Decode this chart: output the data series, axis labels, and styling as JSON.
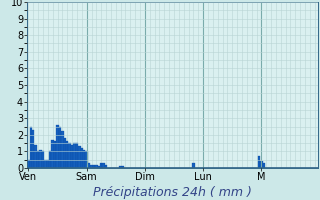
{
  "ylabel_values": [
    0,
    1,
    2,
    3,
    4,
    5,
    6,
    7,
    8,
    9,
    10
  ],
  "ylim": [
    0,
    10
  ],
  "background_color": "#cce8e8",
  "plot_bg_color": "#daf0f0",
  "grid_color_minor": "#b8d4d4",
  "grid_color_major": "#7aabab",
  "bar_color": "#1560bd",
  "bar_edge_color": "#0040a0",
  "x_labels": [
    "Ven",
    "Sam",
    "Dim",
    "Lun",
    "M"
  ],
  "num_bars": 120,
  "bar_data": [
    0.5,
    2.5,
    2.3,
    1.4,
    1.0,
    1.1,
    1.0,
    0.5,
    0.5,
    1.0,
    1.7,
    1.6,
    2.6,
    2.5,
    2.2,
    1.8,
    1.6,
    1.5,
    1.4,
    1.5,
    1.5,
    1.3,
    1.2,
    1.1,
    1.0,
    0.3,
    0.2,
    0.2,
    0.2,
    0.15,
    0.3,
    0.3,
    0.2,
    0.0,
    0.0,
    0.0,
    0.0,
    0.0,
    0.15,
    0.1,
    0.0,
    0.0,
    0.0,
    0.0,
    0.0,
    0.0,
    0.0,
    0.0,
    0.0,
    0.0,
    0.0,
    0.0,
    0.0,
    0.0,
    0.0,
    0.0,
    0.0,
    0.0,
    0.0,
    0.0,
    0.0,
    0.0,
    0.0,
    0.0,
    0.0,
    0.0,
    0.0,
    0.0,
    0.3,
    0.0,
    0.0,
    0.0,
    0.0,
    0.0,
    0.0,
    0.0,
    0.0,
    0.0,
    0.0,
    0.0,
    0.0,
    0.0,
    0.0,
    0.0,
    0.0,
    0.0,
    0.0,
    0.0,
    0.0,
    0.0,
    0.0,
    0.0,
    0.0,
    0.0,
    0.0,
    0.7,
    0.4,
    0.3,
    0.0,
    0.0,
    0.0,
    0.0,
    0.0,
    0.0,
    0.0,
    0.0,
    0.0,
    0.0,
    0.0,
    0.0,
    0.0,
    0.0,
    0.0,
    0.0,
    0.0,
    0.0,
    0.0,
    0.0,
    0.0,
    0.0
  ],
  "xlabel": "Précipitations 24h ( mm )",
  "xlabel_fontsize": 9,
  "tick_fontsize": 7,
  "day_positions": [
    0,
    24,
    48,
    72,
    96
  ],
  "spine_color": "#336688"
}
